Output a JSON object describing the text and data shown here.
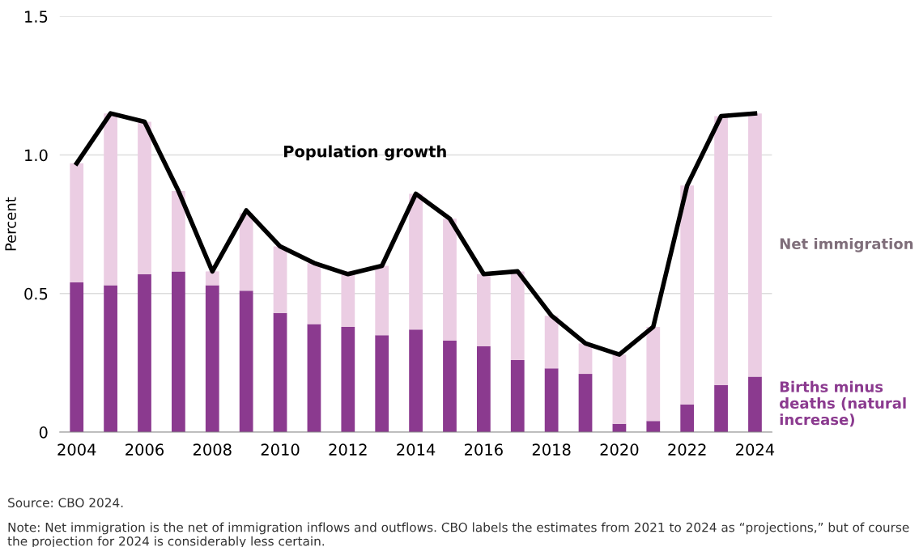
{
  "chart_data": {
    "type": "bar",
    "stacked": true,
    "ylabel": "Percent",
    "x": [
      2004,
      2005,
      2006,
      2007,
      2008,
      2009,
      2010,
      2011,
      2012,
      2013,
      2014,
      2015,
      2016,
      2017,
      2018,
      2019,
      2020,
      2021,
      2022,
      2023,
      2024
    ],
    "series": [
      {
        "name": "Births minus deaths (natural increase)",
        "color": "#8b3a8f",
        "values": [
          0.54,
          0.53,
          0.57,
          0.58,
          0.53,
          0.51,
          0.43,
          0.39,
          0.38,
          0.35,
          0.37,
          0.33,
          0.31,
          0.26,
          0.23,
          0.21,
          0.03,
          0.04,
          0.1,
          0.17,
          0.2
        ]
      },
      {
        "name": "Net immigration",
        "color": "#ebcde3",
        "values": [
          0.43,
          0.62,
          0.55,
          0.29,
          0.05,
          0.28,
          0.24,
          0.22,
          0.2,
          0.25,
          0.49,
          0.44,
          0.26,
          0.32,
          0.19,
          0.11,
          0.25,
          0.34,
          0.79,
          0.97,
          0.95
        ]
      },
      {
        "name": "Population growth",
        "type": "line",
        "color": "#000000",
        "values": [
          0.97,
          1.15,
          1.12,
          0.87,
          0.58,
          0.8,
          0.67,
          0.61,
          0.57,
          0.6,
          0.86,
          0.77,
          0.57,
          0.58,
          0.42,
          0.32,
          0.28,
          0.38,
          0.89,
          1.14,
          1.15
        ]
      }
    ],
    "xlim": [
      2003.5,
      2024.5
    ],
    "xticks": [
      2004,
      2006,
      2008,
      2010,
      2012,
      2014,
      2016,
      2018,
      2020,
      2022,
      2024
    ],
    "ylim": [
      0,
      1.5
    ],
    "yticks": [
      0,
      0.5,
      {
        "value": 1.0,
        "label": "1.0"
      },
      1.5
    ],
    "grid": "y",
    "legend": false,
    "annotations": [
      "Source: CBO 2024.",
      "Note: Net immigration is the net of immigration inflows and outflows. CBO labels the estimates from 2021 to 2024 as “projections,” but of course the projection for 2024 is considerably less certain."
    ]
  }
}
